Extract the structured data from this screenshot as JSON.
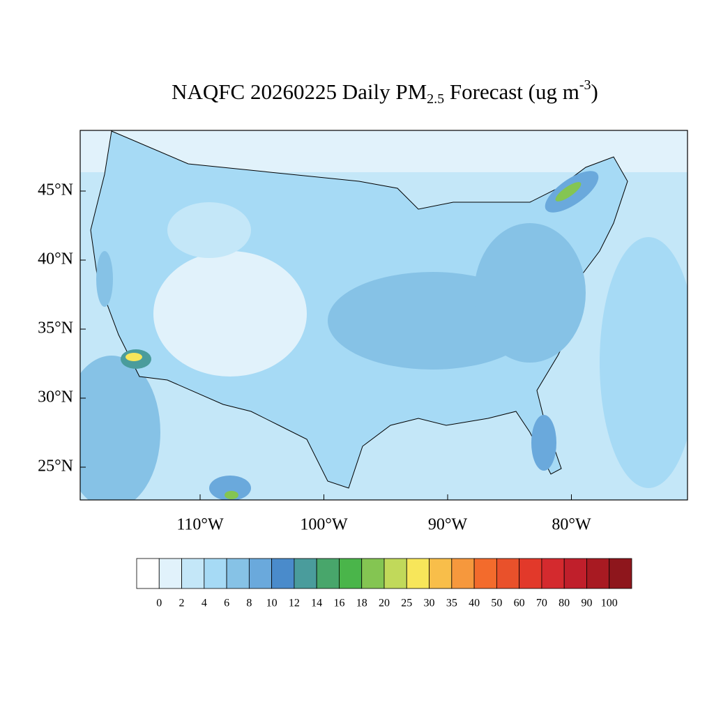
{
  "map": {
    "title": "NAQFC 20260225 Daily PM",
    "title_subscript": "2.5",
    "title_continued": " Forecast (ug m",
    "title_superscript": "-3",
    "title_end": ")",
    "lat_ticks": [
      {
        "value": 45,
        "label": "45°N"
      },
      {
        "value": 40,
        "label": "40°N"
      },
      {
        "value": 35,
        "label": "35°N"
      },
      {
        "value": 30,
        "label": "30°N"
      },
      {
        "value": 25,
        "label": "25°N"
      }
    ],
    "lon_ticks": [
      {
        "value": -110,
        "label": "110°W"
      },
      {
        "value": -100,
        "label": "100°W"
      },
      {
        "value": -90,
        "label": "90°W"
      },
      {
        "value": -80,
        "label": "80°W"
      }
    ],
    "colorbar": {
      "levels": [
        0,
        2,
        4,
        6,
        8,
        10,
        12,
        14,
        16,
        18,
        20,
        25,
        30,
        35,
        40,
        50,
        60,
        70,
        80,
        90,
        100
      ],
      "colors": [
        "#ffffff",
        "#e1f2fb",
        "#c4e7f8",
        "#a6daf5",
        "#86c2e6",
        "#6aa9dc",
        "#4a8bcb",
        "#4a9c9c",
        "#48a66b",
        "#4ab54a",
        "#84c552",
        "#c1d95a",
        "#f7e65a",
        "#f8be4a",
        "#f6983d",
        "#f36b2c",
        "#e9512b",
        "#e2392a",
        "#d42a2e",
        "#c01f2b",
        "#a81a22",
        "#8e161c"
      ]
    }
  }
}
